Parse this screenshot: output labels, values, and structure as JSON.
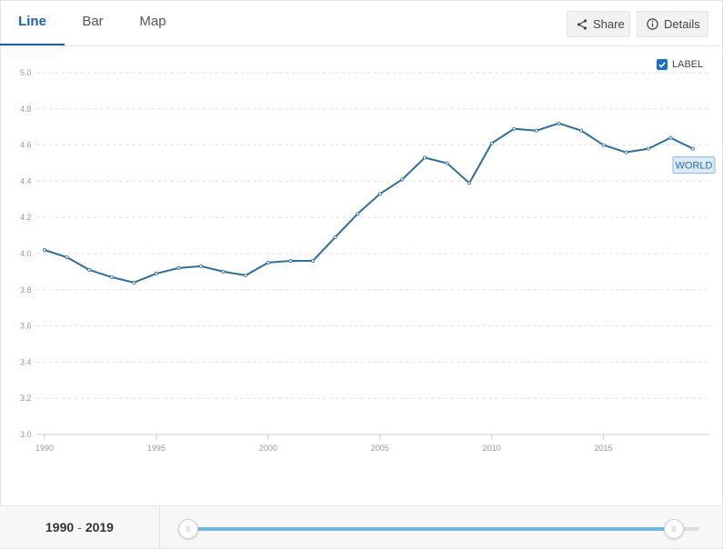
{
  "tabs": [
    {
      "label": "Line",
      "active": true
    },
    {
      "label": "Bar",
      "active": false
    },
    {
      "label": "Map",
      "active": false
    }
  ],
  "toolbar": {
    "share_label": "Share",
    "share_icon": "share-icon",
    "details_label": "Details",
    "details_icon": "info-icon"
  },
  "label_toggle": {
    "label": "LABEL",
    "checked": true
  },
  "colors": {
    "accent": "#1d5fa5",
    "line": "#2e6f9e",
    "slider": "#6fb7dd"
  },
  "chart_data": {
    "type": "line",
    "series": [
      {
        "name": "WORLD",
        "x": [
          1990,
          1991,
          1992,
          1993,
          1994,
          1995,
          1996,
          1997,
          1998,
          1999,
          2000,
          2001,
          2002,
          2003,
          2004,
          2005,
          2006,
          2007,
          2008,
          2009,
          2010,
          2011,
          2012,
          2013,
          2014,
          2015,
          2016,
          2017,
          2018,
          2019
        ],
        "values": [
          4.02,
          3.98,
          3.91,
          3.87,
          3.84,
          3.89,
          3.92,
          3.93,
          3.9,
          3.88,
          3.95,
          3.96,
          3.96,
          4.09,
          4.22,
          4.33,
          4.41,
          4.53,
          4.5,
          4.39,
          4.61,
          4.69,
          4.68,
          4.72,
          4.68,
          4.6,
          4.56,
          4.58,
          4.64,
          4.58
        ]
      }
    ],
    "series_label": "WORLD",
    "xlim": [
      1990,
      2019
    ],
    "ylim": [
      3.0,
      5.0
    ],
    "yticks": [
      "3.0",
      "3.2",
      "3.4",
      "3.6",
      "3.8",
      "4.0",
      "4.2",
      "4.4",
      "4.6",
      "4.8",
      "5.0"
    ],
    "xticks": [
      "1990",
      "1995",
      "2000",
      "2005",
      "2010",
      "2015"
    ],
    "grid": true,
    "title": "",
    "xlabel": "",
    "ylabel": ""
  },
  "range": {
    "start": "1990",
    "separator": "-",
    "end": "2019"
  },
  "slider": {
    "start_fraction": 0.0,
    "end_fraction": 0.95
  }
}
